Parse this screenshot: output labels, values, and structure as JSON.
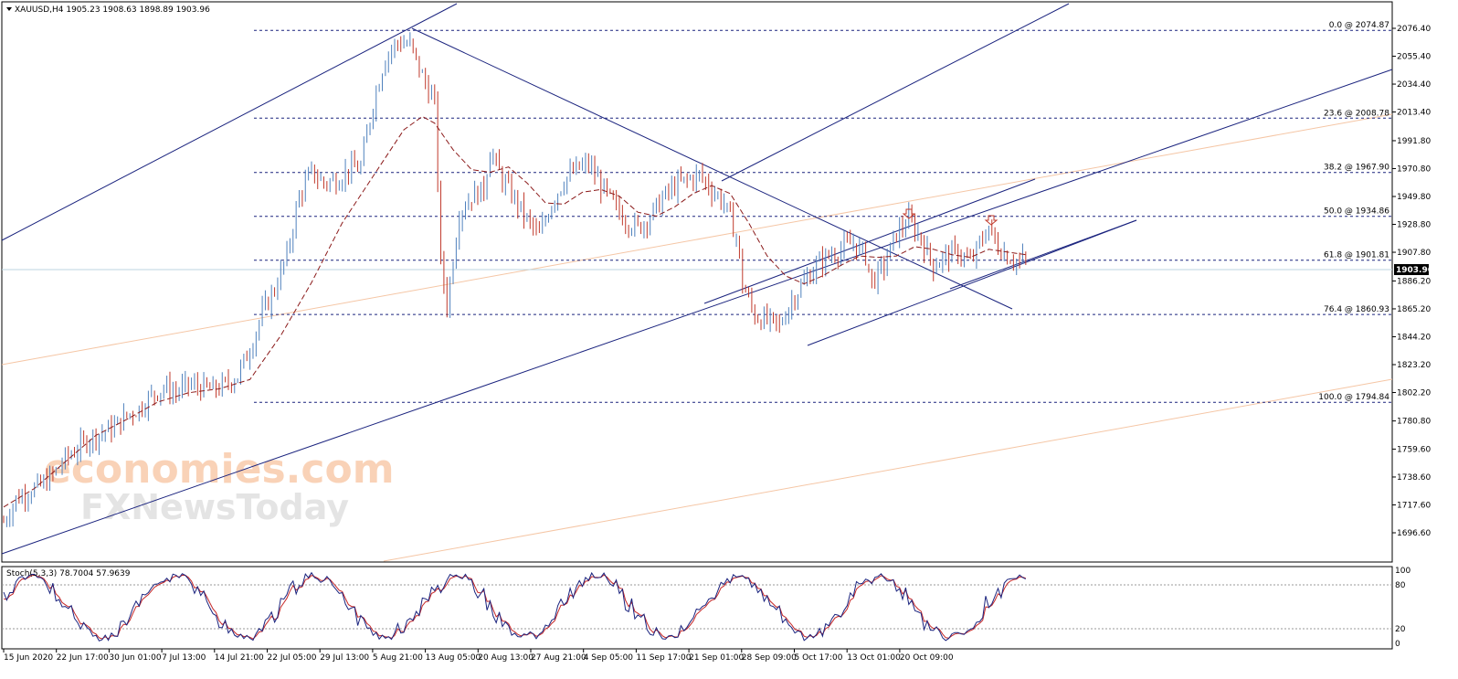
{
  "window": {
    "header": "XAUUSD,H4  1905.23 1908.63 1898.89 1903.96",
    "symbol": "XAUUSD,H4"
  },
  "watermark": {
    "line1": "economies.com",
    "line2": "FXNewsToday"
  },
  "colors": {
    "bull": "#4f81bd",
    "bear": "#c0392b",
    "trendline": "#1a237e",
    "ma": "#8b1a1a",
    "orange_line": "#f5c6a5",
    "grid_dash": "#1a237e",
    "stoch_main": "#1a237e",
    "stoch_signal": "#c62828"
  },
  "chart_data": [
    {
      "type": "candlestick",
      "title": "XAUUSD,H4",
      "ohlc_last": {
        "open": 1905.23,
        "high": 1908.63,
        "low": 1898.89,
        "close": 1903.96
      },
      "current_price": "1903.96",
      "ylim": [
        1690,
        2090
      ],
      "y_ticks": [
        "2076.40",
        "2055.40",
        "2034.40",
        "2013.40",
        "1991.80",
        "1970.80",
        "1949.80",
        "1928.80",
        "1907.80",
        "1886.20",
        "1865.20",
        "1844.20",
        "1823.20",
        "1802.20",
        "1780.80",
        "1759.60",
        "1738.60",
        "1717.60",
        "1696.60"
      ],
      "x_ticks": [
        "15 Jun 2020",
        "22 Jun 17:00",
        "30 Jun 01:00",
        "7 Jul 13:00",
        "14 Jul 21:00",
        "22 Jul 05:00",
        "29 Jul 13:00",
        "5 Aug 21:00",
        "13 Aug 05:00",
        "20 Aug 13:00",
        "27 Aug 21:00",
        "4 Sep 05:00",
        "11 Sep 17:00",
        "21 Sep 01:00",
        "28 Sep 09:00",
        "5 Oct 17:00",
        "13 Oct 01:00",
        "20 Oct 09:00"
      ],
      "fibonacci": [
        {
          "label": "0.0 @ 2074.87",
          "level": "0.0",
          "price": 2074.87
        },
        {
          "label": "23.6 @ 2008.78",
          "level": "23.6",
          "price": 2008.78
        },
        {
          "label": "38.2 @ 1967.90",
          "level": "38.2",
          "price": 1967.9
        },
        {
          "label": "50.0 @ 1934.86",
          "level": "50.0",
          "price": 1934.86
        },
        {
          "label": "61.8 @ 1901.81",
          "level": "61.8",
          "price": 1901.81
        },
        {
          "label": "76.4 @ 1860.93",
          "level": "76.4",
          "price": 1860.93
        },
        {
          "label": "100.0 @ 1794.84",
          "level": "100.0",
          "price": 1794.84
        }
      ],
      "close_path": [
        [
          0,
          1705
        ],
        [
          4,
          1722
        ],
        [
          8,
          1728
        ],
        [
          12,
          1732
        ],
        [
          16,
          1740
        ],
        [
          20,
          1752
        ],
        [
          24,
          1760
        ],
        [
          28,
          1768
        ],
        [
          32,
          1772
        ],
        [
          36,
          1776
        ],
        [
          40,
          1785
        ],
        [
          44,
          1790
        ],
        [
          48,
          1800
        ],
        [
          52,
          1806
        ],
        [
          56,
          1802
        ],
        [
          60,
          1808
        ],
        [
          64,
          1806
        ],
        [
          68,
          1804
        ],
        [
          72,
          1808
        ],
        [
          76,
          1815
        ],
        [
          80,
          1835
        ],
        [
          84,
          1862
        ],
        [
          88,
          1880
        ],
        [
          92,
          1905
        ],
        [
          96,
          1950
        ],
        [
          100,
          1968
        ],
        [
          104,
          1960
        ],
        [
          108,
          1962
        ],
        [
          112,
          1970
        ],
        [
          116,
          1972
        ],
        [
          120,
          2020
        ],
        [
          124,
          2055
        ],
        [
          128,
          2066
        ],
        [
          132,
          2064
        ],
        [
          136,
          2040
        ],
        [
          140,
          2020
        ],
        [
          142,
          1900
        ],
        [
          144,
          1868
        ],
        [
          148,
          1938
        ],
        [
          152,
          1950
        ],
        [
          156,
          1955
        ],
        [
          158,
          1985
        ],
        [
          162,
          1962
        ],
        [
          166,
          1948
        ],
        [
          170,
          1932
        ],
        [
          174,
          1920
        ],
        [
          178,
          1945
        ],
        [
          182,
          1962
        ],
        [
          186,
          1970
        ],
        [
          190,
          1974
        ],
        [
          194,
          1958
        ],
        [
          198,
          1944
        ],
        [
          202,
          1932
        ],
        [
          206,
          1926
        ],
        [
          210,
          1935
        ],
        [
          214,
          1948
        ],
        [
          218,
          1958
        ],
        [
          222,
          1962
        ],
        [
          226,
          1966
        ],
        [
          230,
          1955
        ],
        [
          234,
          1945
        ],
        [
          238,
          1920
        ],
        [
          240,
          1884
        ],
        [
          244,
          1860
        ],
        [
          248,
          1856
        ],
        [
          252,
          1852
        ],
        [
          256,
          1872
        ],
        [
          260,
          1885
        ],
        [
          264,
          1898
        ],
        [
          268,
          1905
        ],
        [
          272,
          1910
        ],
        [
          276,
          1915
        ],
        [
          280,
          1905
        ],
        [
          282,
          1885
        ],
        [
          286,
          1898
        ],
        [
          290,
          1922
        ],
        [
          294,
          1932
        ],
        [
          298,
          1918
        ],
        [
          302,
          1898
        ],
        [
          306,
          1905
        ],
        [
          310,
          1908
        ],
        [
          314,
          1900
        ],
        [
          318,
          1918
        ],
        [
          320,
          1928
        ],
        [
          322,
          1915
        ],
        [
          326,
          1905
        ],
        [
          330,
          1900
        ],
        [
          332,
          1904
        ]
      ],
      "sma_path": [
        [
          0,
          1716
        ],
        [
          10,
          1730
        ],
        [
          20,
          1750
        ],
        [
          30,
          1770
        ],
        [
          40,
          1782
        ],
        [
          50,
          1795
        ],
        [
          60,
          1802
        ],
        [
          70,
          1805
        ],
        [
          80,
          1812
        ],
        [
          90,
          1845
        ],
        [
          100,
          1885
        ],
        [
          110,
          1930
        ],
        [
          120,
          1965
        ],
        [
          130,
          2000
        ],
        [
          136,
          2010
        ],
        [
          140,
          2005
        ],
        [
          146,
          1985
        ],
        [
          152,
          1970
        ],
        [
          158,
          1968
        ],
        [
          164,
          1972
        ],
        [
          170,
          1960
        ],
        [
          176,
          1945
        ],
        [
          182,
          1944
        ],
        [
          188,
          1953
        ],
        [
          194,
          1955
        ],
        [
          200,
          1950
        ],
        [
          206,
          1938
        ],
        [
          212,
          1935
        ],
        [
          218,
          1942
        ],
        [
          224,
          1952
        ],
        [
          230,
          1958
        ],
        [
          236,
          1952
        ],
        [
          242,
          1930
        ],
        [
          248,
          1905
        ],
        [
          254,
          1890
        ],
        [
          260,
          1884
        ],
        [
          266,
          1890
        ],
        [
          272,
          1898
        ],
        [
          278,
          1905
        ],
        [
          284,
          1904
        ],
        [
          290,
          1905
        ],
        [
          296,
          1912
        ],
        [
          302,
          1910
        ],
        [
          308,
          1906
        ],
        [
          314,
          1904
        ],
        [
          320,
          1910
        ],
        [
          326,
          1908
        ],
        [
          332,
          1906
        ]
      ]
    },
    {
      "type": "line",
      "title": "Stoch(5,3,3) 78.7004 57.9639",
      "main_value": 78.7004,
      "signal_value": 57.9639,
      "ylim": [
        0,
        100
      ],
      "y_ticks": [
        "100",
        "80",
        "20",
        "0"
      ],
      "levels": [
        80,
        20
      ]
    }
  ]
}
